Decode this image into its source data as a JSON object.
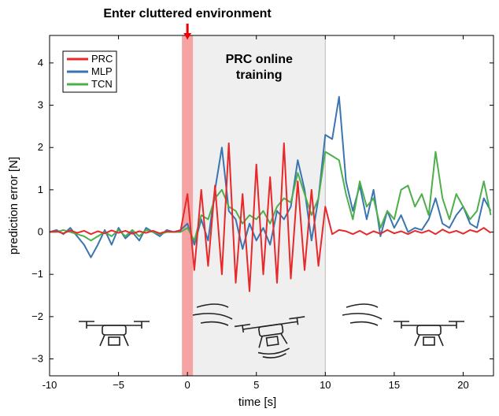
{
  "chart_data": {
    "type": "line",
    "xlabel": "time [s]",
    "ylabel": "prediction error [N]",
    "annotations": [
      "Enter cluttered environment"
    ],
    "shaded_label_lines": [
      "PRC online",
      "training"
    ],
    "shaded_regions": [
      {
        "x": [
          0.4,
          10
        ],
        "color": "#efefef"
      },
      {
        "x": [
          -0.4,
          0.4
        ],
        "color": "#f6a3a3"
      }
    ],
    "arrow_x": 0,
    "xlim": [
      -10,
      22.2
    ],
    "ylim": [
      -3.4,
      4.65
    ],
    "xticks": [
      -10,
      {
        "value": -5,
        "label": "−5"
      },
      0,
      5,
      10,
      15,
      20
    ],
    "yticks": [
      {
        "value": -3,
        "label": "−3"
      },
      {
        "value": -2,
        "label": "−2"
      },
      {
        "value": -1,
        "label": "−1"
      },
      0,
      1,
      2,
      3,
      4
    ],
    "legend": "upper left",
    "x": [
      -10,
      -9.5,
      -9,
      -8.5,
      -8,
      -7.5,
      -7,
      -6.5,
      -6,
      -5.5,
      -5,
      -4.5,
      -4,
      -3.5,
      -3,
      -2.5,
      -2,
      -1.5,
      -1,
      -0.5,
      0,
      0.5,
      1,
      1.5,
      2,
      2.5,
      3,
      3.5,
      4,
      4.5,
      5,
      5.5,
      6,
      6.5,
      7,
      7.5,
      8,
      8.5,
      9,
      9.5,
      10,
      10.5,
      11,
      11.5,
      12,
      12.5,
      13,
      13.5,
      14,
      14.5,
      15,
      15.5,
      16,
      16.5,
      17,
      17.5,
      18,
      18.5,
      19,
      19.5,
      20,
      20.5,
      21,
      21.5,
      22
    ],
    "series": [
      {
        "name": "MLP",
        "color": "#3a75b0",
        "values": [
          0,
          0.05,
          -0.05,
          0.1,
          -0.1,
          -0.3,
          -0.6,
          -0.3,
          0.05,
          -0.3,
          0.1,
          -0.15,
          0,
          -0.2,
          0.1,
          0,
          -0.1,
          0.05,
          0,
          0.05,
          0.2,
          -0.3,
          0.3,
          -0.2,
          1.0,
          2.0,
          0.5,
          0.3,
          -0.4,
          0.2,
          -0.2,
          0.1,
          -0.3,
          0.5,
          0.3,
          0.6,
          1.7,
          1.0,
          -0.2,
          0.8,
          2.3,
          2.2,
          3.2,
          1.2,
          0.5,
          1.1,
          0.3,
          1.0,
          -0.1,
          0.5,
          0.1,
          0.4,
          0,
          0.1,
          0.05,
          0.3,
          0.8,
          0.2,
          0.1,
          0.4,
          0.6,
          0.2,
          0.1,
          0.8,
          0.5
        ]
      },
      {
        "name": "TCN",
        "color": "#4daf4a",
        "values": [
          0,
          0,
          0.05,
          0,
          -0.05,
          -0.1,
          -0.2,
          -0.1,
          0,
          -0.1,
          0.05,
          -0.1,
          0.05,
          -0.1,
          0.05,
          0,
          -0.05,
          0,
          0,
          0,
          0.1,
          -0.2,
          0.4,
          0.3,
          0.8,
          1.0,
          0.6,
          0.5,
          0.2,
          0.4,
          0.3,
          0.5,
          0.2,
          0.6,
          0.8,
          0.7,
          1.4,
          0.9,
          0.4,
          0.8,
          1.9,
          1.8,
          1.7,
          0.9,
          0.3,
          1.2,
          0.6,
          0.8,
          0.1,
          0.5,
          0.3,
          1.0,
          1.1,
          0.6,
          0.9,
          0.4,
          1.9,
          0.8,
          0.3,
          0.9,
          0.6,
          0.3,
          0.5,
          1.2,
          0.4
        ]
      },
      {
        "name": "PRC",
        "color": "#e8282b",
        "values": [
          0,
          0.02,
          -0.03,
          0.04,
          -0.02,
          0.03,
          -0.05,
          0.02,
          -0.03,
          0.04,
          -0.02,
          0.03,
          -0.04,
          0.02,
          -0.02,
          0.03,
          -0.03,
          0.02,
          0,
          0.03,
          0.9,
          -0.9,
          1.0,
          -0.8,
          1.1,
          -1.0,
          2.1,
          -1.2,
          0.9,
          -1.4,
          1.6,
          -1.0,
          1.3,
          -1.2,
          2.1,
          -1.1,
          1.2,
          -0.9,
          1.0,
          -0.8,
          0.6,
          -0.05,
          0.05,
          0.02,
          -0.05,
          0.03,
          -0.06,
          0.02,
          -0.04,
          0.05,
          -0.03,
          0.02,
          -0.05,
          0.03,
          -0.02,
          0.04,
          -0.05,
          0.06,
          -0.02,
          0.03,
          -0.04,
          0.05,
          0,
          0.1,
          -0.02
        ]
      }
    ],
    "legend_order": [
      2,
      0,
      1
    ]
  }
}
